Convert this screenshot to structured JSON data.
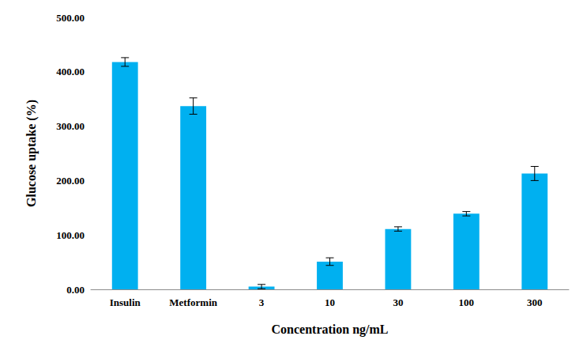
{
  "chart_data": {
    "type": "bar",
    "x_label": "Concentration ng/mL",
    "y_label": "Glucose uptake (%)",
    "categories": [
      "Insulin",
      "Metformin",
      "3",
      "10",
      "30",
      "100",
      "300"
    ],
    "values": [
      418,
      337,
      5,
      51,
      111,
      139,
      213
    ],
    "errors": [
      8,
      15,
      4,
      7,
      4,
      4,
      13
    ],
    "color": "#00b0f0",
    "ylim": [
      0,
      500
    ],
    "yticks": [
      {
        "value": 0,
        "label": "0.00"
      },
      {
        "value": 100,
        "label": "100.00"
      },
      {
        "value": 200,
        "label": "200.00"
      },
      {
        "value": 300,
        "label": "300.00"
      },
      {
        "value": 400,
        "label": "400.00"
      },
      {
        "value": 500,
        "label": "500.00"
      }
    ],
    "grid": false,
    "data_labels": false
  }
}
